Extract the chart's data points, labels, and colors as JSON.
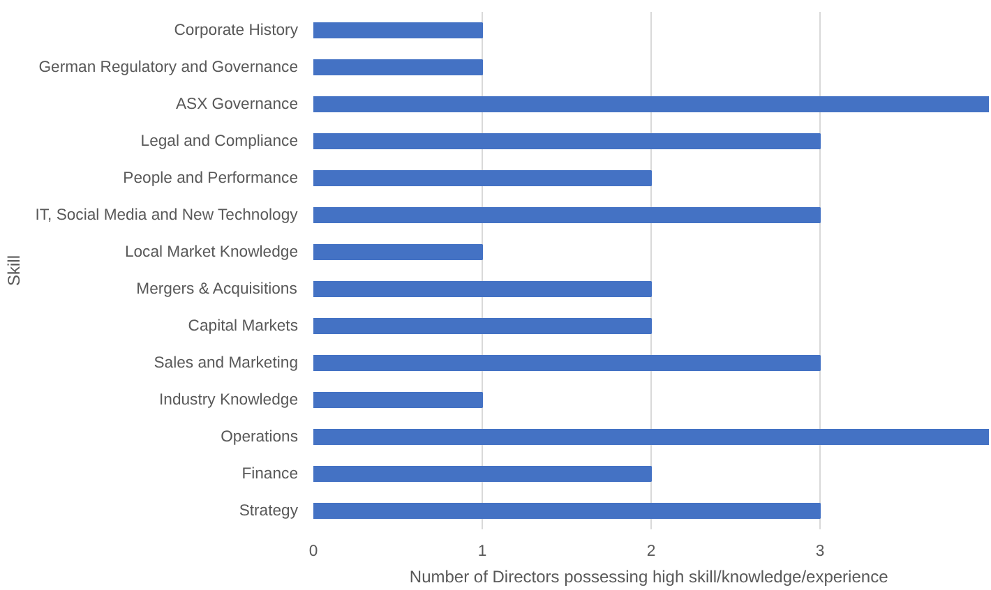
{
  "chart_data": {
    "type": "bar",
    "orientation": "horizontal",
    "xlabel": "Number  of Directors possessing high skill/knowledge/experience",
    "ylabel": "Skill",
    "categories": [
      "Corporate History",
      "German Regulatory and Governance",
      "ASX Governance",
      "Legal and Compliance",
      "People and Performance",
      "IT, Social Media and New Technology",
      "Local Market Knowledge",
      "Mergers & Acquisitions",
      "Capital Markets",
      "Sales and Marketing",
      "Industry Knowledge",
      "Operations",
      "Finance",
      "Strategy"
    ],
    "values": [
      1,
      1,
      4,
      3,
      2,
      3,
      1,
      2,
      2,
      3,
      1,
      4,
      2,
      3
    ],
    "color": "#4472c4",
    "xlim": [
      0,
      4
    ],
    "xticks": [
      0,
      1,
      2,
      3
    ],
    "grid": "x"
  }
}
